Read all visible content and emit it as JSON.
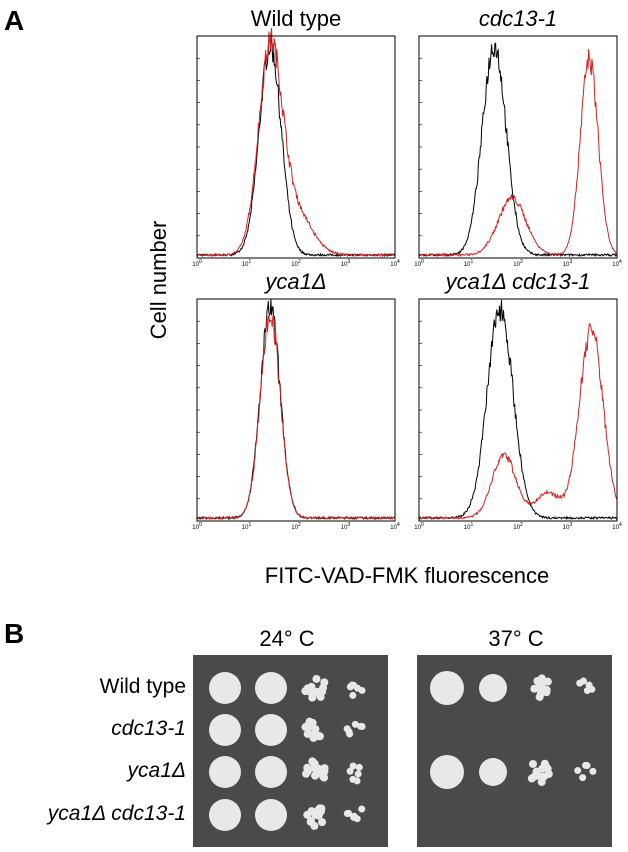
{
  "panel_a": {
    "label": "A",
    "y_label": "Cell number",
    "x_label": "FITC-VAD-FMK fluorescence",
    "plots": [
      {
        "title": "Wild type"
      },
      {
        "title": "cdc13-1"
      },
      {
        "title": "yca1Δ"
      },
      {
        "title": "yca1Δ cdc13-1"
      }
    ],
    "x_tick_labels": [
      {
        "base": "10",
        "exp": "0"
      },
      {
        "base": "10",
        "exp": "1"
      },
      {
        "base": "10",
        "exp": "2"
      },
      {
        "base": "10",
        "exp": "3"
      },
      {
        "base": "10",
        "exp": "4"
      }
    ]
  },
  "panel_b": {
    "label": "B",
    "temperatures": [
      "24° C",
      "37° C"
    ],
    "strains": [
      "Wild type",
      "cdc13-1",
      "yca1Δ",
      "yca1Δ cdc13-1"
    ]
  }
}
